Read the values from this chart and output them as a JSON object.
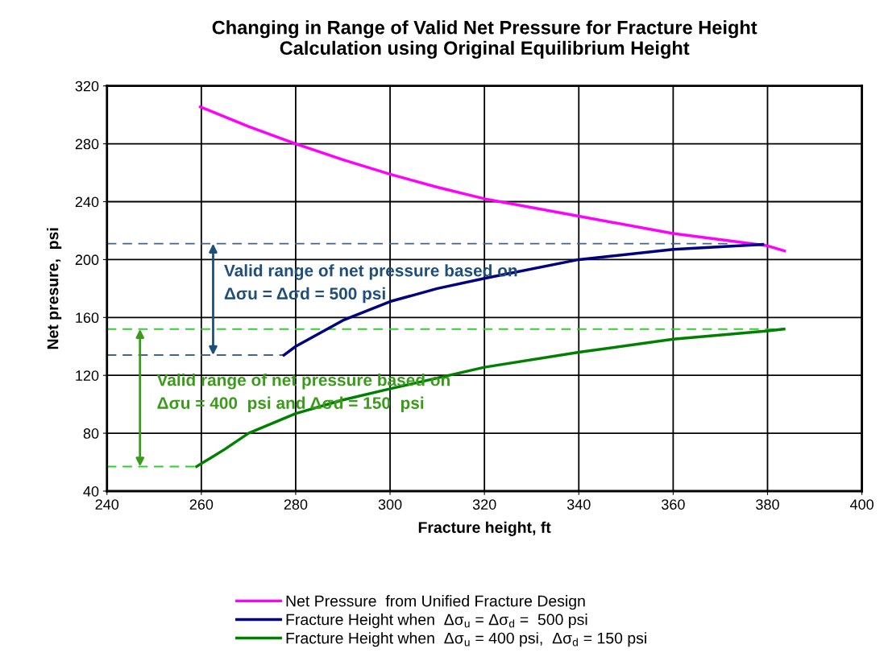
{
  "chart_data": {
    "type": "line",
    "title": "Changing in Range of Valid Net Pressure for Fracture Height\nCalculation using Original Equilibrium Height",
    "xlabel": "Fracture height, ft",
    "ylabel": "Net presure,  psi",
    "series": [
      {
        "name": "Net Pressure  from Unified Fracture Design",
        "color": "#ff00ff",
        "x": [
          259.8,
          270,
          280,
          290,
          300,
          310,
          320,
          340,
          360,
          380,
          383.6
        ],
        "values": [
          305.5,
          292,
          280,
          269,
          259,
          250,
          242,
          230,
          218,
          209.5,
          206
        ]
      },
      {
        "name": "Fracture Height when  Δσ$_{u}$ = Δσ$_{d}$ =  500 psi",
        "color": "#000080",
        "x": [
          277.5,
          280,
          290,
          300,
          310,
          320,
          340,
          360,
          379
        ],
        "values": [
          134,
          140,
          158,
          171,
          180,
          187,
          200,
          207,
          210.5
        ]
      },
      {
        "name": "Fracture Height when  Δσ$_{u}$ = 400 psi,  Δσ$_{d}$ = 150 psi",
        "color": "#008000",
        "x": [
          259,
          262,
          265,
          270,
          280,
          290,
          300,
          320,
          340,
          360,
          380,
          383.5
        ],
        "values": [
          57,
          63,
          69,
          80,
          93.6,
          103,
          110.7,
          125.6,
          136,
          145,
          150.7,
          152
        ]
      },
      {
        "color": "#44648c",
        "line_style": "dashed",
        "x": [
          240,
          372
        ],
        "values": [
          211,
          211
        ]
      },
      {
        "color": "#44648c",
        "line_style": "dashed",
        "x": [
          240,
          277.5
        ],
        "values": [
          134,
          134
        ]
      },
      {
        "color": "#33cc33",
        "line_style": "dashed",
        "x": [
          240,
          383.5
        ],
        "values": [
          152,
          152
        ]
      },
      {
        "color": "#33cc33",
        "line_style": "dashed",
        "x": [
          240,
          259
        ],
        "values": [
          57,
          57
        ]
      }
    ],
    "annotations": [
      {
        "text": "Valid range of net pressure based on\nΔσu = Δσd = 500 psi",
        "x": 262.5,
        "y": 211
      },
      {
        "text": "Valid range of net pressure based on\nΔσu = 400  psi and Δσd = 150  psi",
        "x": 247,
        "y": 152
      }
    ],
    "xlim": [
      240,
      400
    ],
    "xticks": [
      240,
      260,
      280,
      300,
      320,
      340,
      360,
      380,
      400
    ],
    "ylim": [
      40,
      320
    ],
    "yticks": [
      40,
      80,
      120,
      160,
      200,
      240,
      280,
      320
    ],
    "grid": true,
    "legend": "bottom",
    "marker": "none",
    "line_style": "solid"
  }
}
